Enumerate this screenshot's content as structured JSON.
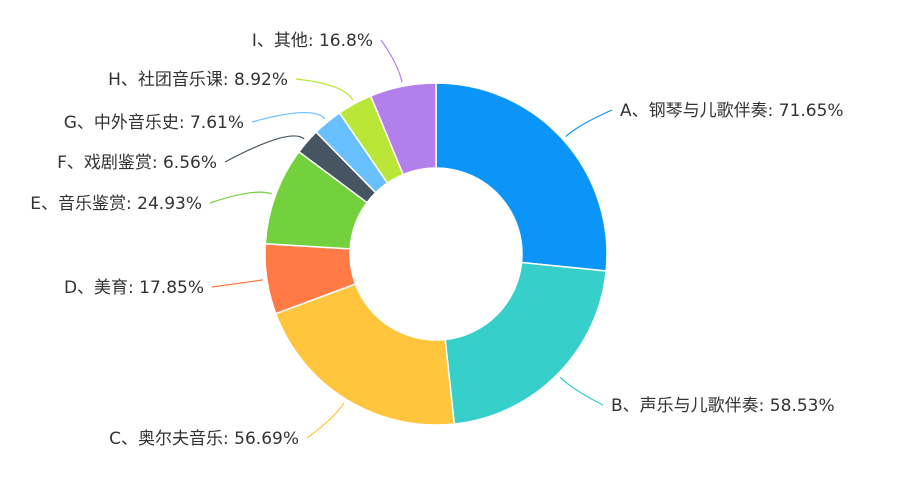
{
  "chart_data": {
    "type": "pie",
    "variant": "donut",
    "slices": [
      {
        "label": "A、钢琴与儿歌伴奏: 71.65%",
        "value": 71.65,
        "color": "#0b95f9"
      },
      {
        "label": "B、声乐与儿歌伴奏: 58.53%",
        "value": 58.53,
        "color": "#36cfca"
      },
      {
        "label": "C、奥尔夫音乐: 56.69%",
        "value": 56.69,
        "color": "#ffc53d"
      },
      {
        "label": "D、美育: 17.85%",
        "value": 17.85,
        "color": "#ff7a45"
      },
      {
        "label": "E、音乐鉴赏: 24.93%",
        "value": 24.93,
        "color": "#73d13d"
      },
      {
        "label": "F、戏剧鉴赏: 6.56%",
        "value": 6.56,
        "color": "#475461"
      },
      {
        "label": "G、中外音乐史: 7.61%",
        "value": 7.61,
        "color": "#69c0ff"
      },
      {
        "label": "H、社团音乐课: 8.92%",
        "value": 8.92,
        "color": "#bae637"
      },
      {
        "label": "I、其他: 16.8%",
        "value": 16.8,
        "color": "#b37feb"
      }
    ],
    "legend": "none"
  }
}
